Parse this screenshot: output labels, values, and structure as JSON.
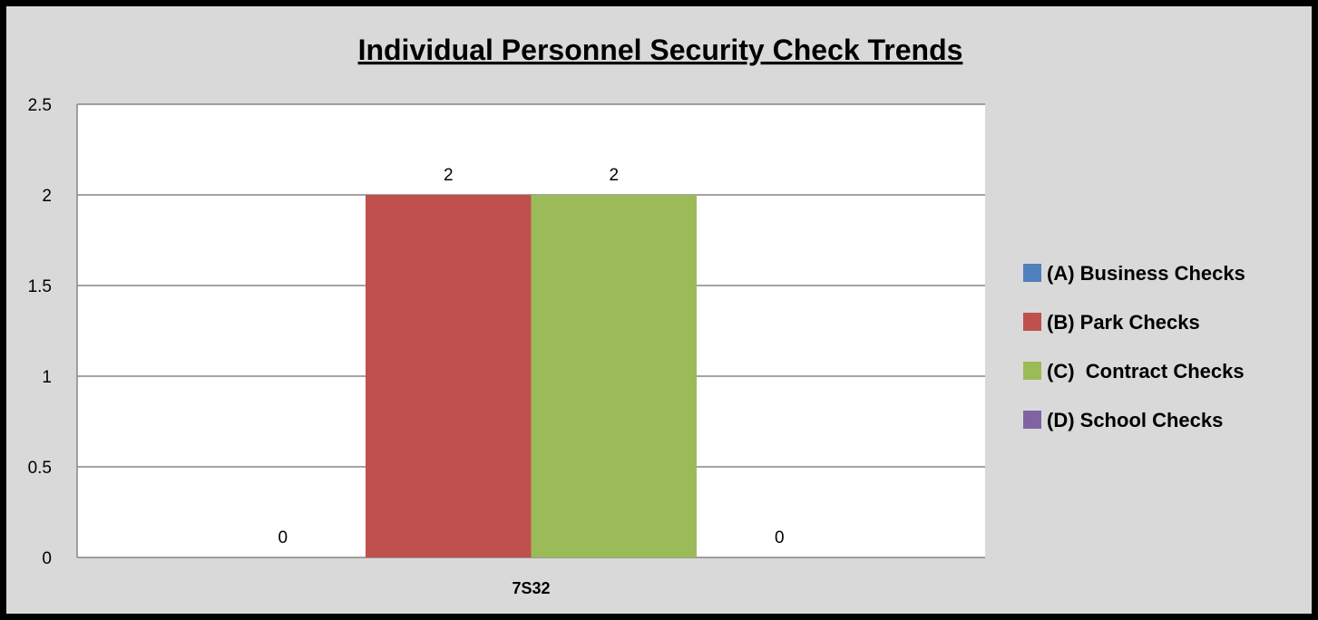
{
  "chart_data": {
    "type": "bar",
    "title": "Individual Personnel Security Check Trends",
    "categories": [
      "7S32"
    ],
    "series": [
      {
        "name": "(A) Business Checks",
        "values": [
          0
        ],
        "color": "#4f81bd",
        "data_label": "0"
      },
      {
        "name": "(B) Park Checks",
        "values": [
          2
        ],
        "color": "#c0504d",
        "data_label": "2"
      },
      {
        "name": "(C)  Contract Checks",
        "values": [
          2
        ],
        "color": "#9bbb59",
        "data_label": "2"
      },
      {
        "name": "(D) School Checks",
        "values": [
          0
        ],
        "color": "#8064a2",
        "data_label": "0"
      }
    ],
    "ylim": [
      0,
      2.5
    ],
    "yticks": [
      "0",
      "0.5",
      "1",
      "1.5",
      "2",
      "2.5"
    ],
    "grid": true,
    "legend_position": "right"
  }
}
